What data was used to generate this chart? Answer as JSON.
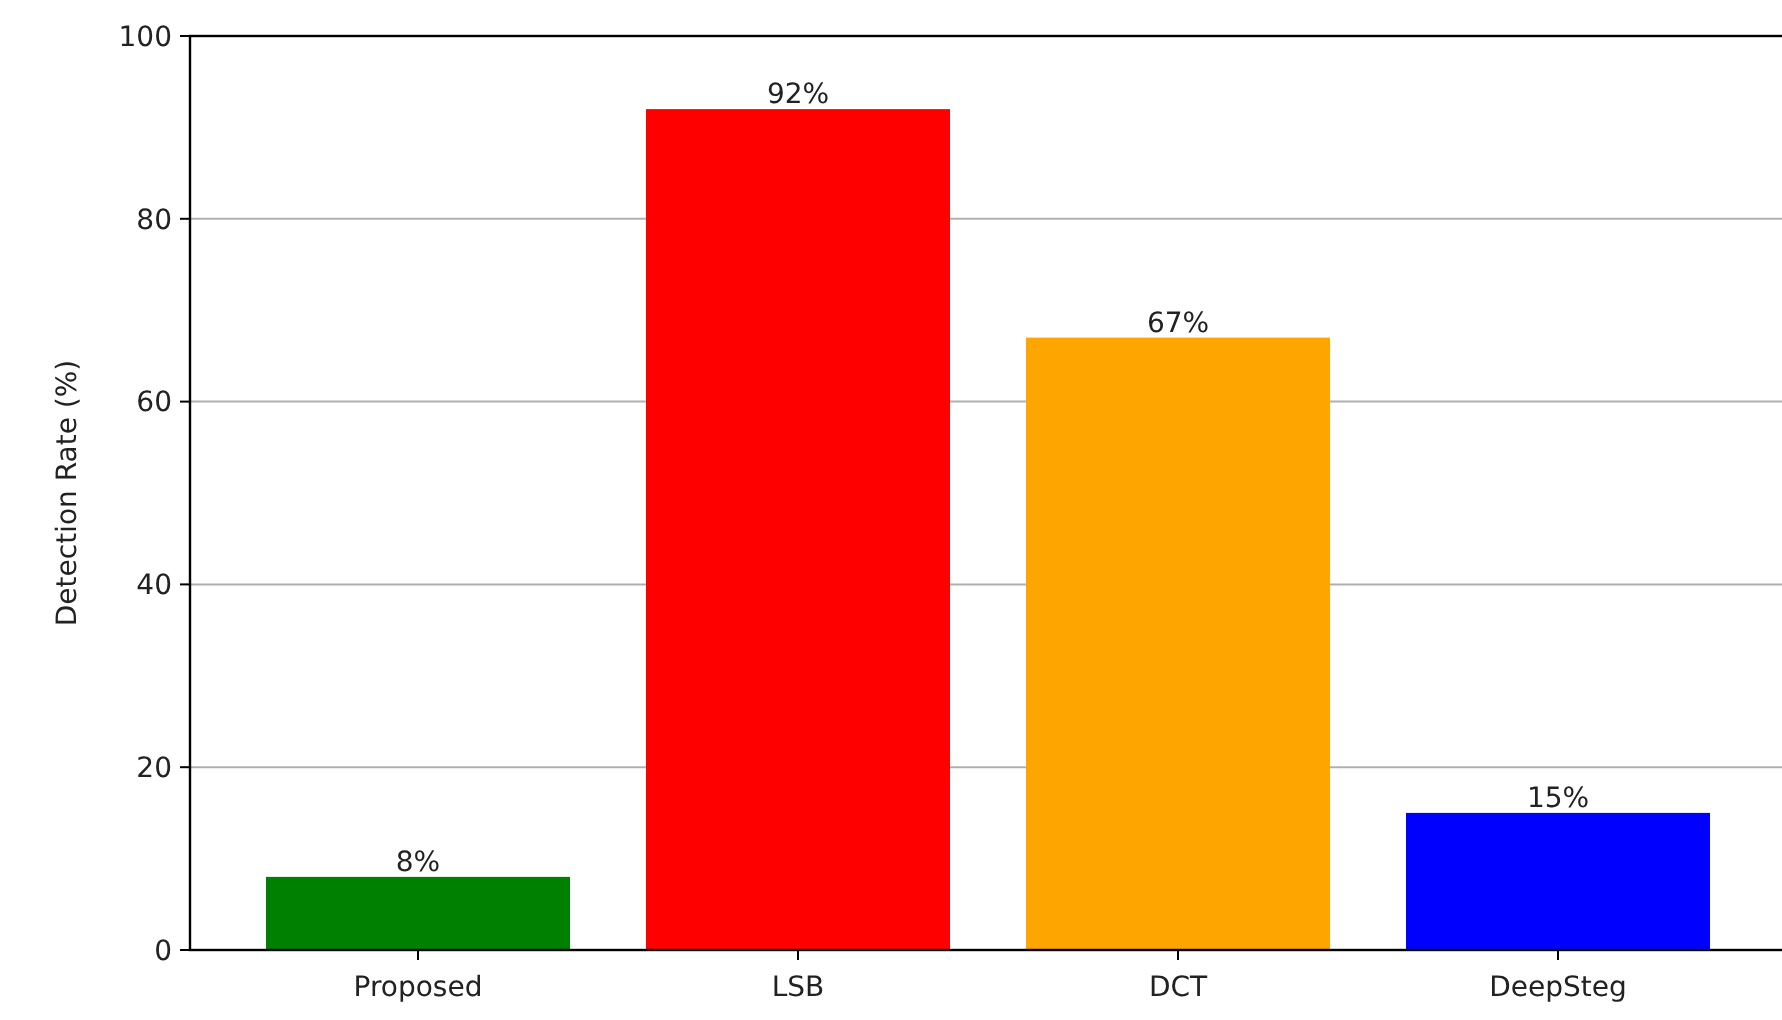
{
  "chart_data": {
    "type": "bar",
    "ylabel": "Detection Rate (%)",
    "categories": [
      "Proposed",
      "LSB",
      "DCT",
      "DeepSteg"
    ],
    "values": [
      8,
      92,
      67,
      15
    ],
    "colors": [
      "#008000",
      "#ff0000",
      "#ffa500",
      "#0000ff"
    ],
    "value_labels": [
      "8%",
      "92%",
      "67%",
      "15%"
    ],
    "ylim": [
      0,
      100
    ],
    "yticks": [
      0,
      20,
      40,
      60,
      80,
      100
    ],
    "grid": "y"
  }
}
